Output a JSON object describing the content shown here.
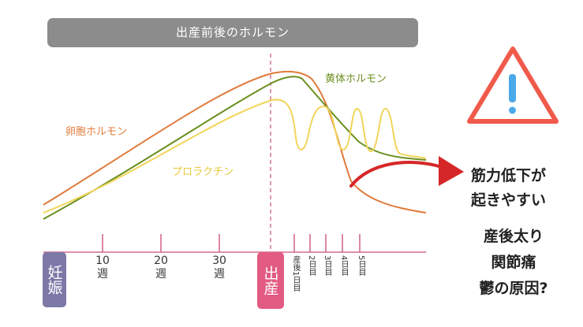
{
  "title": "出産前後のホルモン",
  "phase_labels": {
    "pregnancy": "妊娠",
    "birth": "出産"
  },
  "week_ticks": [
    {
      "number": "10",
      "unit": "週"
    },
    {
      "number": "20",
      "unit": "週"
    },
    {
      "number": "30",
      "unit": "週"
    }
  ],
  "day_ticks": [
    "産後1日目",
    "2日目",
    "3日目",
    "4日目",
    "5日目"
  ],
  "series": {
    "estrogen": {
      "name": "卵胞ホルモン",
      "color": "#e07a3c"
    },
    "progesterone": {
      "name": "黄体ホルモン",
      "color": "#6a8f1f"
    },
    "prolactin": {
      "name": "プロラクチン",
      "color": "#f2d55a"
    }
  },
  "notes": {
    "line1": "筋力低下が",
    "line2": "起きやすい",
    "line3": "産後太り",
    "line4": "関節痛",
    "line5": "鬱の原因?"
  },
  "colors": {
    "axis": "#d36a8e",
    "pregnancy_pill": "#7c79a8",
    "birth_pill": "#e25b82",
    "arrow": "#d62728",
    "warning": "#f05a4a",
    "warning_mark": "#4aa9e8"
  },
  "icons": {
    "warning": "warning-triangle-icon",
    "arrow": "curved-arrow-icon"
  }
}
